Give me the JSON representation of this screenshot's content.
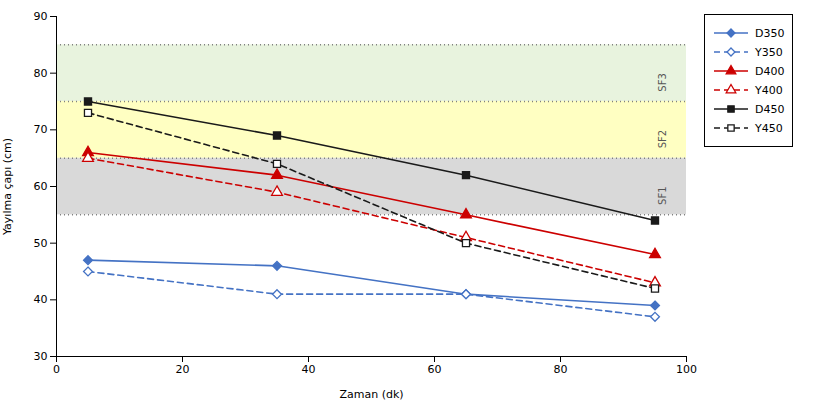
{
  "chart_data": {
    "type": "line",
    "title": "",
    "xlabel": "Zaman (dk)",
    "ylabel": "Yayılma çapı (cm)",
    "x": [
      5,
      35,
      65,
      95
    ],
    "xlim": [
      0,
      100
    ],
    "ylim": [
      30,
      90
    ],
    "xticks": [
      0,
      20,
      40,
      60,
      80,
      100
    ],
    "yticks": [
      30,
      40,
      50,
      60,
      70,
      80,
      90
    ],
    "grid": false,
    "legend": "right",
    "series": [
      {
        "name": "D350",
        "color": "#4472c4",
        "values": [
          47,
          46,
          41,
          39
        ],
        "line_style": "solid",
        "marker": "diamond"
      },
      {
        "name": "Y350",
        "color": "#4472c4",
        "values": [
          45,
          41,
          41,
          37
        ],
        "line_style": "dashed",
        "marker": "diamond-open"
      },
      {
        "name": "D400",
        "color": "#cc0000",
        "values": [
          66,
          62,
          55,
          48
        ],
        "line_style": "solid",
        "marker": "triangle"
      },
      {
        "name": "Y400",
        "color": "#cc0000",
        "values": [
          65,
          59,
          51,
          43
        ],
        "line_style": "dashed",
        "marker": "triangle-open"
      },
      {
        "name": "D450",
        "color": "#1a1a1a",
        "values": [
          75,
          69,
          62,
          54
        ],
        "line_style": "solid",
        "marker": "square"
      },
      {
        "name": "Y450",
        "color": "#1a1a1a",
        "values": [
          73,
          64,
          50,
          42
        ],
        "line_style": "dashed",
        "marker": "square-open"
      }
    ],
    "zones": [
      {
        "label": "SF1",
        "ymin": 55,
        "ymax": 65,
        "label_y": 60,
        "color": "#c0c0c0"
      },
      {
        "label": "SF2",
        "ymin": 65,
        "ymax": 75,
        "label_y": 70,
        "color": "#ffff99"
      },
      {
        "label": "SF3",
        "ymin": 75,
        "ymax": 85,
        "label_y": 80,
        "color": "#d8ebc8"
      }
    ],
    "reference_lines": [
      55,
      65,
      75,
      85
    ]
  }
}
